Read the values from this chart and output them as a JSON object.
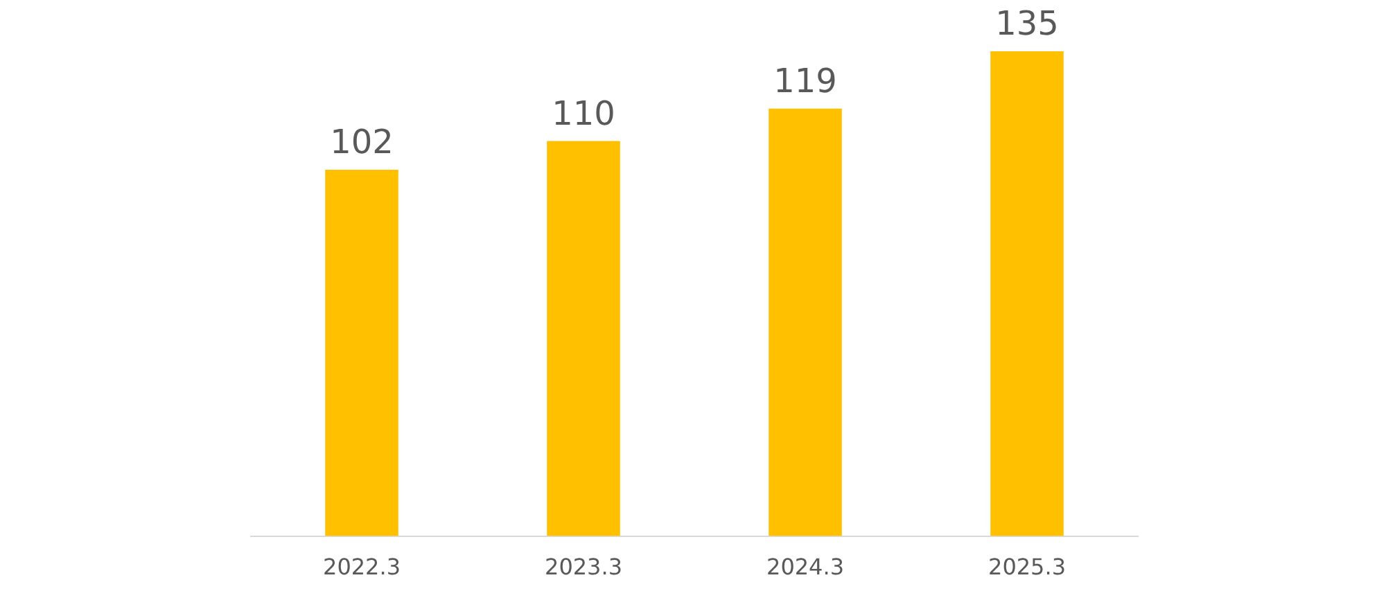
{
  "chart_data": {
    "type": "bar",
    "categories": [
      "2022.3",
      "2023.3",
      "2024.3",
      "2025.3"
    ],
    "values": [
      102,
      110,
      119,
      135
    ],
    "color": "#ffc000",
    "data_labels": true,
    "tick_labels": "x",
    "grid": false
  }
}
